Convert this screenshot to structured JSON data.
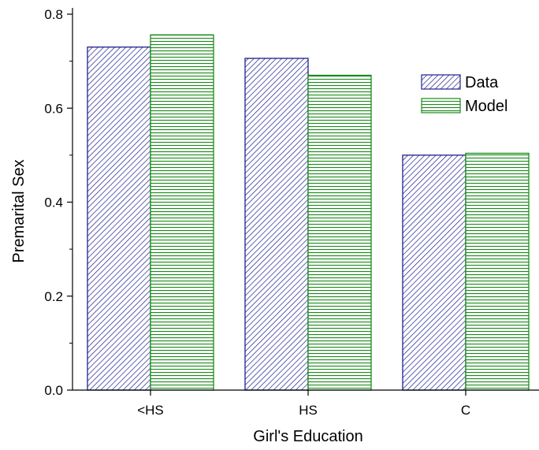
{
  "chart_data": {
    "type": "bar",
    "title": "",
    "xlabel": "Girl's Education",
    "ylabel": "Premarital Sex",
    "categories": [
      "<HS",
      "HS",
      "C"
    ],
    "series": [
      {
        "name": "Data",
        "values": [
          0.73,
          0.706,
          0.5
        ],
        "color": "#1f1f8f",
        "pattern": "diagonal-hatch"
      },
      {
        "name": "Model",
        "values": [
          0.756,
          0.67,
          0.504
        ],
        "color": "#1a8a1a",
        "pattern": "horizontal-hatch"
      }
    ],
    "ylim": [
      0,
      0.8
    ],
    "yticks": [
      "0.0",
      "0.2",
      "0.4",
      "0.6",
      "0.8"
    ],
    "grid": false,
    "legend_position": "top-right"
  }
}
